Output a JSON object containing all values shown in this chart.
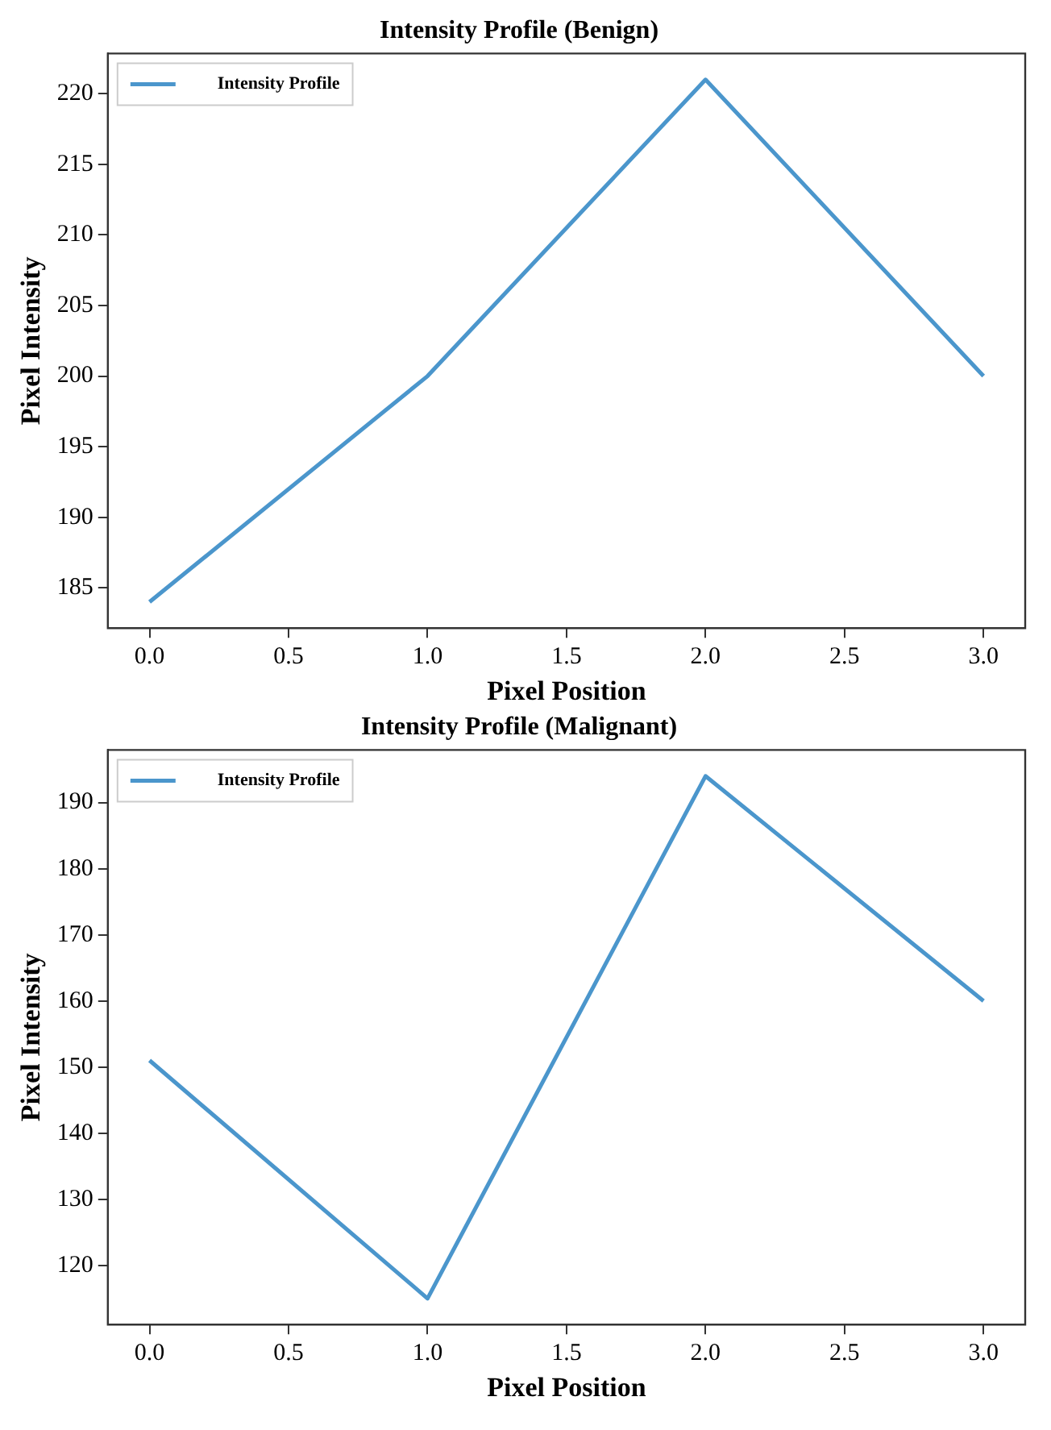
{
  "chart_data": [
    {
      "type": "line",
      "title": "Intensity Profile (Benign)",
      "xlabel": "Pixel Position",
      "ylabel": "Pixel Intensity",
      "x": [
        0,
        1,
        2,
        3
      ],
      "series": [
        {
          "name": "Intensity Profile",
          "color": "#4b96cc",
          "values": [
            184,
            200,
            221,
            200
          ]
        }
      ],
      "xlim": [
        -0.15,
        3.15
      ],
      "ylim": [
        182.15,
        222.85
      ],
      "xticks": [
        {
          "value": 0,
          "label": "0.0"
        },
        {
          "value": 0.5,
          "label": "0.5"
        },
        {
          "value": 1,
          "label": "1.0"
        },
        {
          "value": 1.5,
          "label": "1.5"
        },
        {
          "value": 2,
          "label": "2.0"
        },
        {
          "value": 2.5,
          "label": "2.5"
        },
        {
          "value": 3,
          "label": "3.0"
        }
      ],
      "yticks": [
        185,
        190,
        195,
        200,
        205,
        210,
        215,
        220
      ],
      "legend": "top left",
      "grid": false
    },
    {
      "type": "line",
      "title": "Intensity Profile (Malignant)",
      "xlabel": "Pixel Position",
      "ylabel": "Pixel Intensity",
      "x": [
        0,
        1,
        2,
        3
      ],
      "series": [
        {
          "name": "Intensity Profile",
          "color": "#4b96cc",
          "values": [
            151,
            115,
            194,
            160
          ]
        }
      ],
      "xlim": [
        -0.15,
        3.15
      ],
      "ylim": [
        111.05,
        197.95
      ],
      "xticks": [
        {
          "value": 0,
          "label": "0.0"
        },
        {
          "value": 0.5,
          "label": "0.5"
        },
        {
          "value": 1,
          "label": "1.0"
        },
        {
          "value": 1.5,
          "label": "1.5"
        },
        {
          "value": 2,
          "label": "2.0"
        },
        {
          "value": 2.5,
          "label": "2.5"
        },
        {
          "value": 3,
          "label": "3.0"
        }
      ],
      "yticks": [
        120,
        130,
        140,
        150,
        160,
        170,
        180,
        190
      ],
      "legend": "top left",
      "grid": false
    }
  ]
}
